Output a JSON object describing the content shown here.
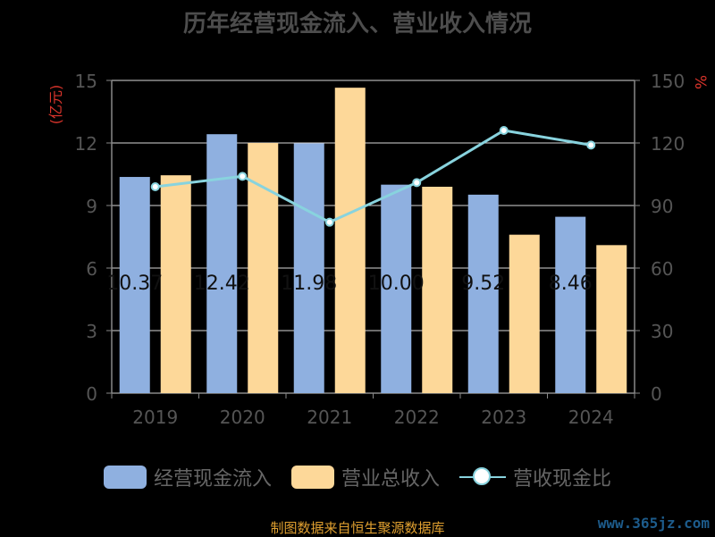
{
  "header": {
    "title": "历年经营现金流入、营业收入情况"
  },
  "colors": {
    "cash": "#8fb0e0",
    "revenue": "#fdd899",
    "ratio": "#88d3de",
    "unit": "#d9342b",
    "axis": "#888888",
    "grid": "#d8d8d8"
  },
  "legend": {
    "cash_label": "经营现金流入",
    "revenue_label": "营业总收入",
    "ratio_label": "营收现金比"
  },
  "footer": {
    "source": "制图数据来自恒生聚源数据库",
    "watermark": "www.365jz.com"
  },
  "chart_data": {
    "type": "bar",
    "title": "历年经营现金流入、营业收入情况",
    "categories": [
      "2019",
      "2020",
      "2021",
      "2022",
      "2023",
      "2024"
    ],
    "ylabel": "(亿元)",
    "y2label": "%",
    "ylim": [
      0,
      15
    ],
    "y2lim": [
      0,
      150
    ],
    "yticks": [
      0,
      3,
      6,
      9,
      12,
      15
    ],
    "y2ticks": [
      0,
      30,
      60,
      90,
      120,
      150
    ],
    "grid": true,
    "legend_position": "bottom",
    "series": [
      {
        "name": "经营现金流入",
        "kind": "bar",
        "axis": "left",
        "values": [
          10.37,
          12.42,
          11.98,
          10.0,
          9.52,
          8.46
        ]
      },
      {
        "name": "营业总收入",
        "kind": "bar",
        "axis": "left",
        "values": [
          10.45,
          12.0,
          14.65,
          9.9,
          7.6,
          7.1
        ]
      },
      {
        "name": "营收现金比",
        "kind": "line",
        "axis": "right",
        "values": [
          99,
          104,
          82,
          101,
          126,
          119
        ]
      }
    ],
    "bar_labels": [
      "10.37",
      "12.42",
      "11.98",
      "10.00",
      "9.52",
      "8.46"
    ]
  }
}
